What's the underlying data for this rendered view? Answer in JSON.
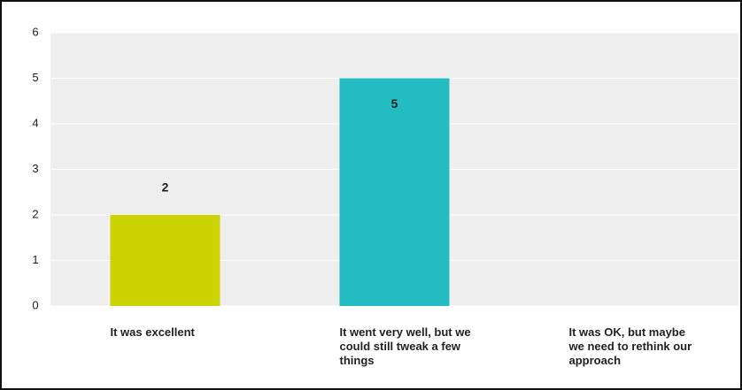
{
  "chart_data": {
    "type": "bar",
    "categories": [
      "It was excellent",
      "It went very well, but we could still tweak a few things",
      "It was OK, but maybe we need to rethink our approach"
    ],
    "values": [
      2,
      5,
      0
    ],
    "value_labels": [
      "2",
      "5",
      null
    ],
    "colors": [
      "#ccd300",
      "#22bcc2",
      "#888888"
    ],
    "ylim": [
      0,
      6
    ],
    "yticks": [
      0,
      1,
      2,
      3,
      4,
      5,
      6
    ],
    "grid": true
  }
}
